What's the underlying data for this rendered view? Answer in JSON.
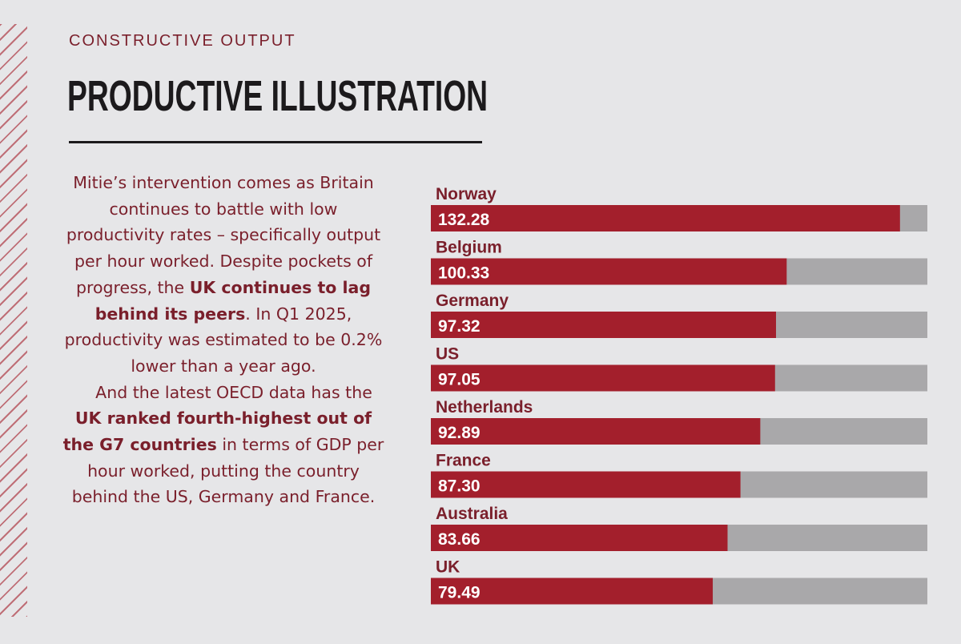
{
  "article": {
    "kicker": "CONSTRUCTIVE OUTPUT",
    "headline": "PRODUCTIVE ILLUSTRATION",
    "p1_before": "Mitie’s intervention comes as Britain continues to battle with low productivity rates – specifically output per hour worked. Despite pockets of progress, the ",
    "p1_bold": "UK continues to lag behind its peers",
    "p1_after": ". In Q1 2025, productivity was estimated to be 0.2% lower than a year ago.",
    "p2_before": "And the latest OECD data has the ",
    "p2_bold": "UK ranked fourth-highest out of the G7 countries",
    "p2_after": " in terms of GDP per hour worked, putting the country behind the US, Germany and France."
  },
  "colors": {
    "bar": "#a31f2c",
    "track": "#a9a8aa",
    "label": "#7a1f2b",
    "value_text": "#ffffff",
    "text_dark": "#1c1a1c"
  },
  "chart_data": {
    "type": "bar",
    "orientation": "horizontal",
    "categories": [
      "Norway",
      "Belgium",
      "Germany",
      "US",
      "Netherlands",
      "France",
      "Australia",
      "UK"
    ],
    "values": [
      132.28,
      100.33,
      97.32,
      97.05,
      92.89,
      87.3,
      83.66,
      79.49
    ],
    "value_labels": [
      "132.28",
      "100.33",
      "97.32",
      "97.05",
      "92.89",
      "87.30",
      "83.66",
      "79.49"
    ],
    "xlim": [
      0,
      140
    ],
    "grid": false,
    "title": "",
    "xlabel": "",
    "ylabel": ""
  }
}
